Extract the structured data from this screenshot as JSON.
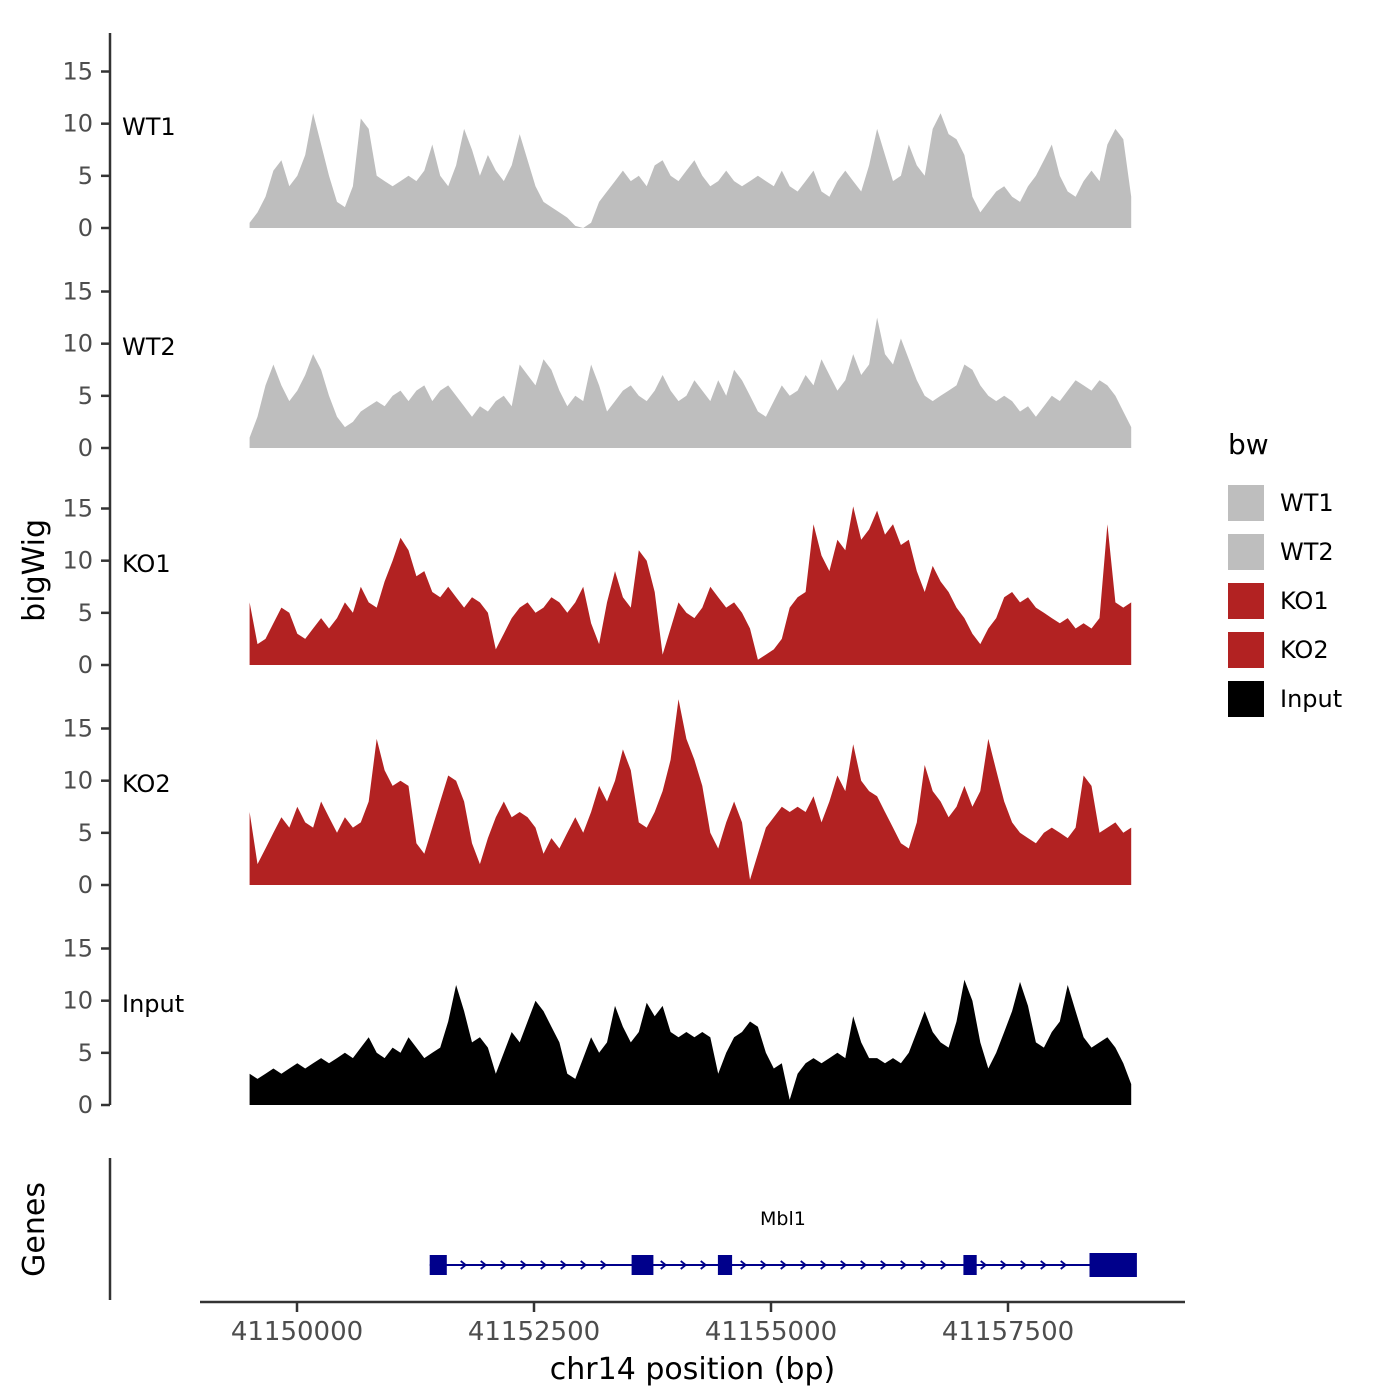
{
  "figure": {
    "y_axis_title": "bigWig",
    "genes_panel_title": "Genes",
    "x_axis_title": "chr14 position (bp)"
  },
  "legend": {
    "title": "bw",
    "entries": [
      {
        "label": "WT1",
        "color": "#BEBEBE"
      },
      {
        "label": "WT2",
        "color": "#BEBEBE"
      },
      {
        "label": "KO1",
        "color": "#B22222"
      },
      {
        "label": "KO2",
        "color": "#B22222"
      },
      {
        "label": "Input",
        "color": "#000000"
      }
    ]
  },
  "chart_data": {
    "type": "area",
    "title": "",
    "xlabel": "chr14 position (bp)",
    "ylabel": "bigWig",
    "x_range_bp": [
      41149500,
      41158800
    ],
    "x_ticks": [
      41150000,
      41152500,
      41155000,
      41157500
    ],
    "y_ticks": [
      0,
      5,
      10,
      15
    ],
    "ylim": [
      0,
      18.5
    ],
    "panels": [
      {
        "name": "WT1",
        "color": "#BEBEBE",
        "values": [
          0.5,
          1.5,
          3,
          5.5,
          6.5,
          4,
          5,
          7,
          11,
          8,
          5,
          2.5,
          2,
          4,
          10.5,
          9.5,
          5,
          4.5,
          4,
          4.5,
          5,
          4.5,
          5.5,
          8,
          5,
          4,
          6,
          9.5,
          7.5,
          5,
          7,
          5.5,
          4.5,
          6,
          9,
          6.5,
          4,
          2.5,
          2,
          1.5,
          1,
          0.2,
          0,
          0.5,
          2.5,
          3.5,
          4.5,
          5.5,
          4.5,
          5,
          4,
          6,
          6.5,
          5,
          4.5,
          5.5,
          6.5,
          5,
          4,
          4.5,
          5.5,
          4.5,
          4,
          4.5,
          5,
          4.5,
          4,
          5.5,
          4,
          3.5,
          4.5,
          5.5,
          3.5,
          3,
          4.5,
          5.5,
          4.5,
          3.5,
          6,
          9.5,
          7,
          4.5,
          5,
          8,
          6,
          5,
          9.5,
          11,
          9,
          8.5,
          7,
          3,
          1.5,
          2.5,
          3.5,
          4,
          3,
          2.5,
          4,
          5,
          6.5,
          8,
          5,
          3.5,
          3,
          4.5,
          5.5,
          4.5,
          8,
          9.5,
          8.5,
          3
        ]
      },
      {
        "name": "WT2",
        "color": "#BEBEBE",
        "values": [
          1,
          3,
          6,
          8,
          6,
          4.5,
          5.5,
          7,
          9,
          7.5,
          5,
          3,
          2,
          2.5,
          3.5,
          4,
          4.5,
          4,
          5,
          5.5,
          4.5,
          5.5,
          6,
          4.5,
          5.5,
          6,
          5,
          4,
          3,
          4,
          3.5,
          4.5,
          5,
          4,
          8,
          7,
          6,
          8.5,
          7.5,
          5.5,
          4,
          5,
          4.5,
          8,
          6,
          3.5,
          4.5,
          5.5,
          6,
          5,
          4.5,
          5.5,
          7,
          5.5,
          4.5,
          5,
          6.5,
          5.5,
          4.5,
          6.5,
          5,
          7.5,
          6.5,
          5,
          3.5,
          3,
          4.5,
          6,
          5,
          5.5,
          7,
          6,
          8.5,
          7,
          5.5,
          6.5,
          9,
          7,
          8,
          12.5,
          9,
          8,
          10.5,
          8.5,
          6.5,
          5,
          4.5,
          5,
          5.5,
          6,
          8,
          7.5,
          6,
          5,
          4.5,
          5,
          4.5,
          3.5,
          4,
          3,
          4,
          5,
          4.5,
          5.5,
          6.5,
          6,
          5.5,
          6.5,
          6,
          5,
          3.5,
          2
        ]
      },
      {
        "name": "KO1",
        "color": "#B22222",
        "values": [
          6,
          2,
          2.5,
          4,
          5.5,
          5,
          3,
          2.5,
          3.5,
          4.5,
          3.5,
          4.5,
          6,
          5,
          7.5,
          6,
          5.5,
          8,
          10,
          12.2,
          11,
          8.5,
          9,
          7,
          6.5,
          7.5,
          6.5,
          5.5,
          6.5,
          6,
          5,
          1.5,
          3,
          4.5,
          5.5,
          6,
          5,
          5.5,
          6.5,
          6,
          5,
          6,
          7.5,
          4,
          2,
          6,
          9,
          6.5,
          5.5,
          11,
          10,
          7,
          1,
          3.5,
          6,
          5,
          4.5,
          5.5,
          7.5,
          6.5,
          5.5,
          6,
          5,
          3.5,
          0.5,
          1,
          1.5,
          2.5,
          5.5,
          6.5,
          7,
          13.5,
          10.5,
          9,
          12,
          11,
          15.2,
          12,
          13,
          14.8,
          12.5,
          13.5,
          11.5,
          12,
          9,
          7,
          9.5,
          8,
          7,
          5.5,
          4.5,
          3,
          2,
          3.5,
          4.5,
          6.5,
          7,
          6,
          6.5,
          5.5,
          5,
          4.5,
          4,
          4.5,
          3.5,
          4,
          3.5,
          4.5,
          13.5,
          6,
          5.5,
          6
        ]
      },
      {
        "name": "KO2",
        "color": "#B22222",
        "values": [
          7,
          2,
          3.5,
          5,
          6.5,
          5.5,
          7.5,
          6,
          5.5,
          8,
          6.5,
          5,
          6.5,
          5.5,
          6,
          8,
          14,
          11,
          9.5,
          10,
          9.5,
          4,
          3,
          5.5,
          8,
          10.5,
          10,
          8,
          4,
          2,
          4.5,
          6.5,
          8,
          6.5,
          7,
          6.5,
          5.5,
          3,
          4.5,
          3.5,
          5,
          6.5,
          5,
          7,
          9.5,
          8,
          10,
          13,
          11,
          6,
          5.5,
          7,
          9,
          12,
          17.8,
          14,
          12,
          9.5,
          5,
          3.5,
          6,
          8,
          6,
          0.5,
          3,
          5.5,
          6.5,
          7.5,
          7,
          7.5,
          7,
          8.5,
          6,
          8,
          10.5,
          9,
          13.5,
          10,
          9,
          8.5,
          7,
          5.5,
          4,
          3.5,
          6,
          11.5,
          9,
          8,
          6.5,
          7.5,
          9.5,
          7.5,
          9,
          14,
          11,
          8,
          6,
          5,
          4.5,
          4,
          5,
          5.5,
          5,
          4.5,
          5.5,
          10.5,
          9.5,
          5,
          5.5,
          6,
          5,
          5.5
        ]
      },
      {
        "name": "Input",
        "color": "#000000",
        "values": [
          3,
          2.5,
          3,
          3.5,
          3,
          3.5,
          4,
          3.5,
          4,
          4.5,
          4,
          4.5,
          5,
          4.5,
          5.5,
          6.5,
          5,
          4.5,
          5.5,
          5,
          6.5,
          5.5,
          4.5,
          5,
          5.5,
          8,
          11.5,
          9,
          6,
          6.5,
          5.5,
          3,
          5,
          7,
          6,
          8,
          10,
          9,
          7.5,
          6,
          3,
          2.5,
          4.5,
          6.5,
          5,
          6,
          9.5,
          7.5,
          6,
          7,
          9.8,
          8.5,
          9.5,
          7,
          6.5,
          7,
          6.5,
          7,
          6.5,
          3,
          5,
          6.5,
          7,
          8,
          7.5,
          5,
          3.5,
          4,
          0.5,
          3,
          4,
          4.5,
          4,
          4.5,
          5,
          4.5,
          8.5,
          6,
          4.5,
          4.5,
          4,
          4.5,
          4,
          5,
          7,
          9,
          7,
          6,
          5.5,
          8,
          12,
          10,
          6,
          3.5,
          5,
          7,
          9,
          11.8,
          9.5,
          6,
          5.5,
          7,
          8,
          11.5,
          9,
          6.5,
          5.5,
          6,
          6.5,
          5.5,
          4,
          2
        ]
      }
    ],
    "gene_track": {
      "label": "Mbl1",
      "color": "#00008B",
      "strand": "+",
      "start_bp": 41151400,
      "end_bp": 41158850,
      "exons_bp": [
        [
          41151400,
          41151580
        ],
        [
          41153530,
          41153760
        ],
        [
          41154440,
          41154590
        ],
        [
          41157030,
          41157170
        ],
        [
          41158360,
          41158860
        ]
      ]
    }
  }
}
